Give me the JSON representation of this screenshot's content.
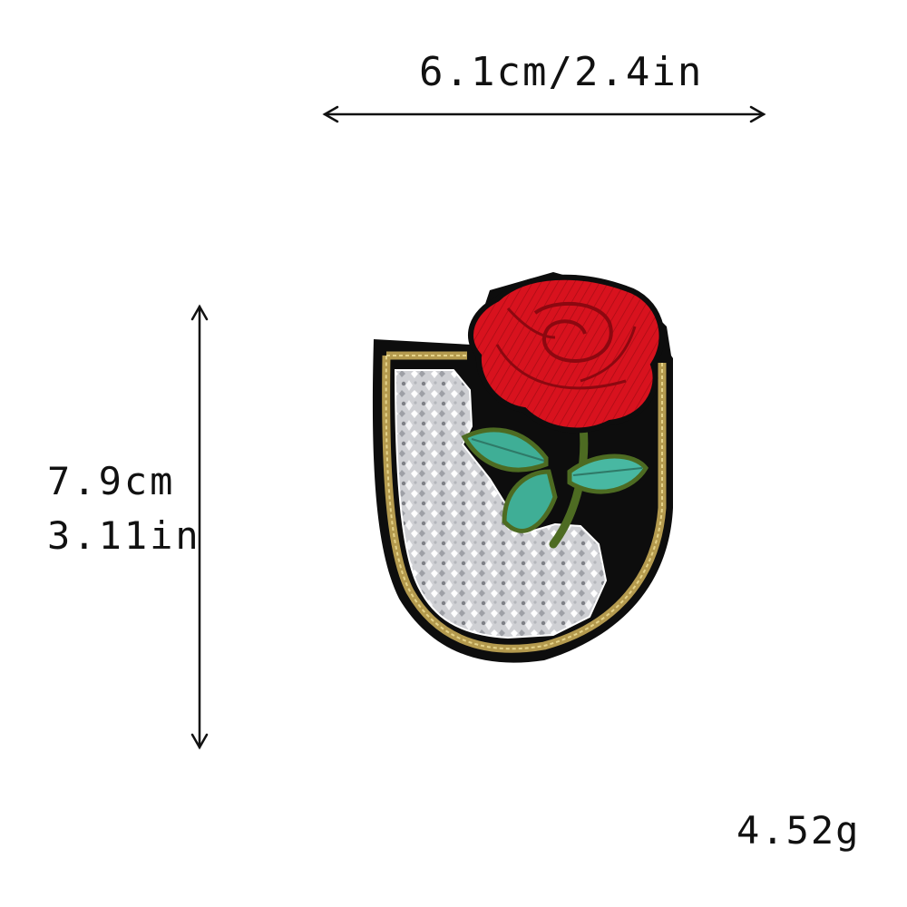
{
  "dimensions": {
    "width_label": "6.1cm/2.4in",
    "height_cm_label": "7.9cm",
    "height_in_label": "3.11in"
  },
  "weight_label": "4.52g",
  "product": {
    "icon": "rose-shield-patch-icon",
    "colors": {
      "rose": "#d4101c",
      "leaf": "#3fae96",
      "stem": "#4d6b22",
      "rhinestone": "#d8d8dc",
      "border": "#b8a35a",
      "backing": "#0d0d0d"
    }
  }
}
